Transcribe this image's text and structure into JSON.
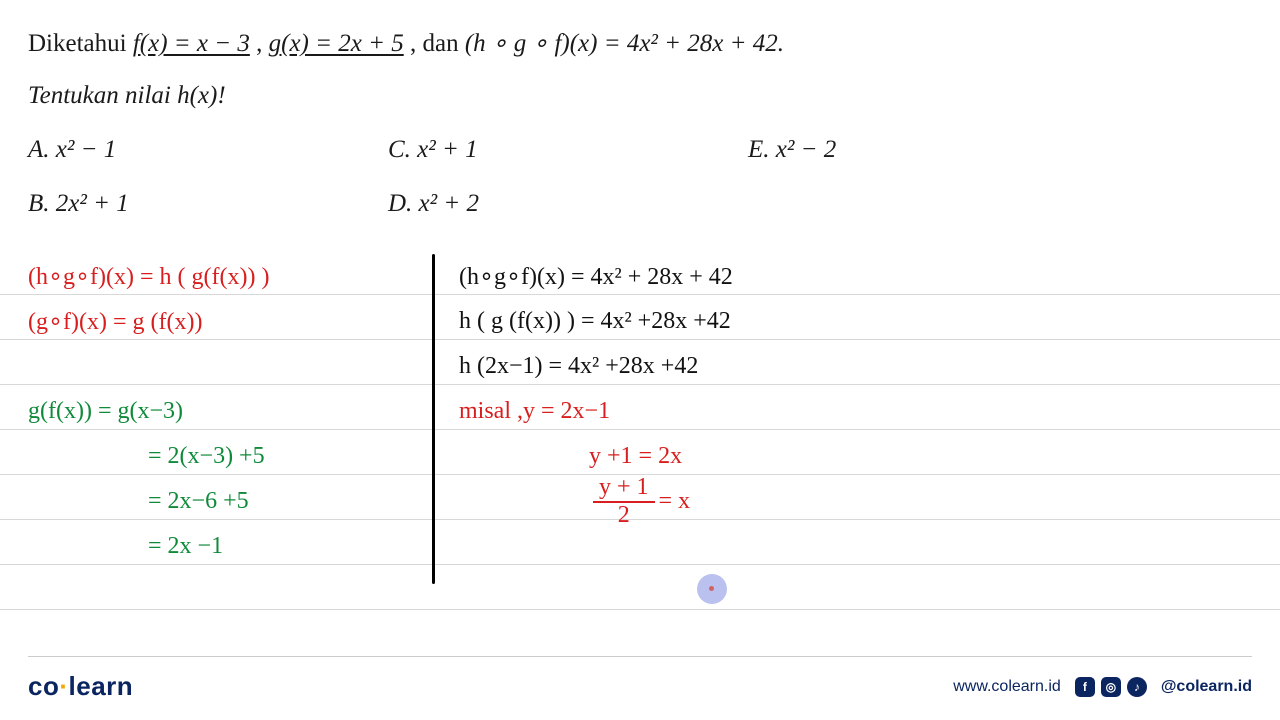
{
  "colors": {
    "printed_text": "#1a1a1a",
    "handwriting_red": "#d81e1e",
    "handwriting_green": "#0f8a3a",
    "handwriting_black": "#111111",
    "rule_line": "#d8d8d8",
    "cursor_fill": "#9da8e8",
    "brand_navy": "#0b2560",
    "brand_accent": "#f7a600",
    "background": "#ffffff"
  },
  "typography": {
    "printed_family": "Times New Roman",
    "printed_size_pt": 19,
    "handwriting_family": "Comic Sans MS",
    "handwriting_size_pt": 18
  },
  "question": {
    "line1_pre": "Diketahui ",
    "fx": "f(x) = x − 3",
    "sep1": ",   ",
    "gx": "g(x) = 2x + 5",
    "sep2": ", dan   ",
    "comp": "(h ∘ g ∘ f)(x) = 4x² + 28x + 42.",
    "line2": "Tentukan nilai h(x)!",
    "options": {
      "A": "A. x² − 1",
      "B": "B. 2x² + 1",
      "C": "C. x² + 1",
      "D": "D. x² + 2",
      "E": "E. x² − 2"
    }
  },
  "work_left": {
    "l1": "(h∘g∘f)(x) = h ( g(f(x)) )",
    "l2": "(g∘f)(x)   =   g (f(x))",
    "l3": "g(f(x))  =  g(x−3)",
    "l4": "= 2(x−3) +5",
    "l5": "= 2x−6 +5",
    "l6": "= 2x −1"
  },
  "work_right": {
    "r1": "(h∘g∘f)(x) =  4x² + 28x + 42",
    "r2": "h ( g (f(x)) ) = 4x² +28x +42",
    "r3": "h (2x−1) =  4x² +28x +42",
    "r4a": "misal ,   ",
    "r4b": "y = 2x−1",
    "r5": "y +1 = 2x",
    "r6_num": "y + 1",
    "r6_den": "2",
    "r6_rhs": " = x"
  },
  "footer": {
    "logo_left": "co",
    "logo_right": "learn",
    "url": "www.colearn.id",
    "handle": "@colearn.id",
    "icons": [
      "facebook",
      "instagram",
      "tiktok"
    ]
  }
}
